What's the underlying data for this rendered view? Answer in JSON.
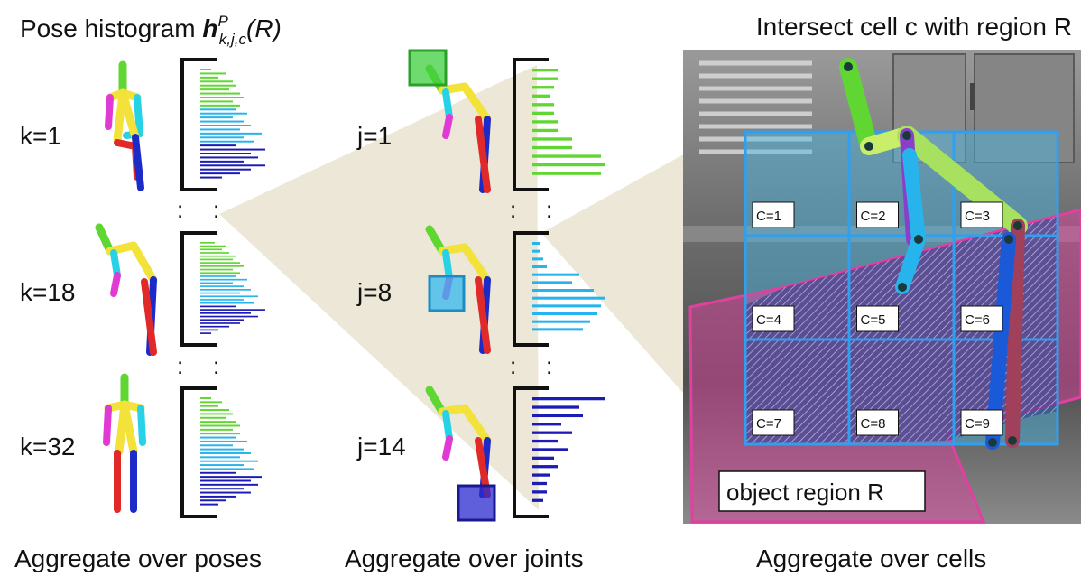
{
  "titles": {
    "left_prefix": "Pose histogram ",
    "left_symbol": "h",
    "left_sup": "P",
    "left_sub": "k,j,c",
    "left_suffix": "(R)",
    "right": "Intersect cell c with region R"
  },
  "captions": {
    "poses": "Aggregate over poses",
    "joints": "Aggregate over joints",
    "cells": "Aggregate over cells"
  },
  "poses": [
    {
      "label": "k=1"
    },
    {
      "label": "k=18"
    },
    {
      "label": "k=32"
    }
  ],
  "joints": [
    {
      "label": "j=1",
      "marker_color": "#3fcf3f"
    },
    {
      "label": "j=8",
      "marker_color": "#33b8ee"
    },
    {
      "label": "j=14",
      "marker_color": "#2a2ad0"
    }
  ],
  "ellipsis": ":",
  "cells": [
    "C=1",
    "C=2",
    "C=3",
    "C=4",
    "C=5",
    "C=6",
    "C=7",
    "C=8",
    "C=9"
  ],
  "region_label": "object region R",
  "colors": {
    "green": "#5fd632",
    "cyan": "#27b4ec",
    "blue": "#1c1cb4",
    "magenta": "#e0389f",
    "grid": "#2f9ff0",
    "cone": "#ece7d6"
  },
  "histograms": {
    "pose_k1": {
      "values": [
        0.15,
        0.35,
        0.25,
        0.45,
        0.5,
        0.4,
        0.55,
        0.6,
        0.45,
        0.55,
        0.5,
        0.65,
        0.45,
        0.6,
        0.7,
        0.55,
        0.85,
        0.6,
        0.75,
        0.5,
        0.9,
        0.7,
        0.8,
        0.6,
        0.9,
        0.7,
        0.55,
        0.3
      ],
      "split": [
        10,
        19
      ]
    },
    "pose_k18": {
      "values": [
        0.2,
        0.35,
        0.3,
        0.4,
        0.5,
        0.45,
        0.55,
        0.6,
        0.45,
        0.55,
        0.5,
        0.65,
        0.45,
        0.6,
        0.7,
        0.55,
        0.8,
        0.6,
        0.75,
        0.5,
        0.9,
        0.7,
        0.8,
        0.6,
        0.55,
        0.4,
        0.25,
        0.15
      ],
      "split": [
        10,
        19
      ]
    },
    "pose_k32": {
      "values": [
        0.15,
        0.3,
        0.25,
        0.4,
        0.45,
        0.35,
        0.5,
        0.55,
        0.45,
        0.55,
        0.5,
        0.65,
        0.45,
        0.6,
        0.7,
        0.55,
        0.8,
        0.6,
        0.75,
        0.5,
        0.85,
        0.7,
        0.8,
        0.6,
        0.7,
        0.5,
        0.35,
        0.25
      ],
      "split": [
        10,
        19
      ]
    },
    "joint_j1": {
      "values": [
        0.35,
        0.35,
        0.3,
        0.25,
        0.3,
        0.3,
        0.35,
        0.35,
        0.55,
        0.55,
        0.95,
        1.0,
        0.95
      ],
      "color": "green"
    },
    "joint_j8": {
      "values": [
        0.1,
        0.1,
        0.15,
        0.2,
        0.65,
        0.55,
        0.85,
        1.0,
        0.95,
        0.9,
        0.8,
        0.7
      ],
      "color": "cyan"
    },
    "joint_j14": {
      "values": [
        1.0,
        0.65,
        0.7,
        0.4,
        0.55,
        0.35,
        0.5,
        0.3,
        0.35,
        0.25,
        0.2,
        0.2,
        0.15
      ],
      "color": "blue"
    }
  }
}
